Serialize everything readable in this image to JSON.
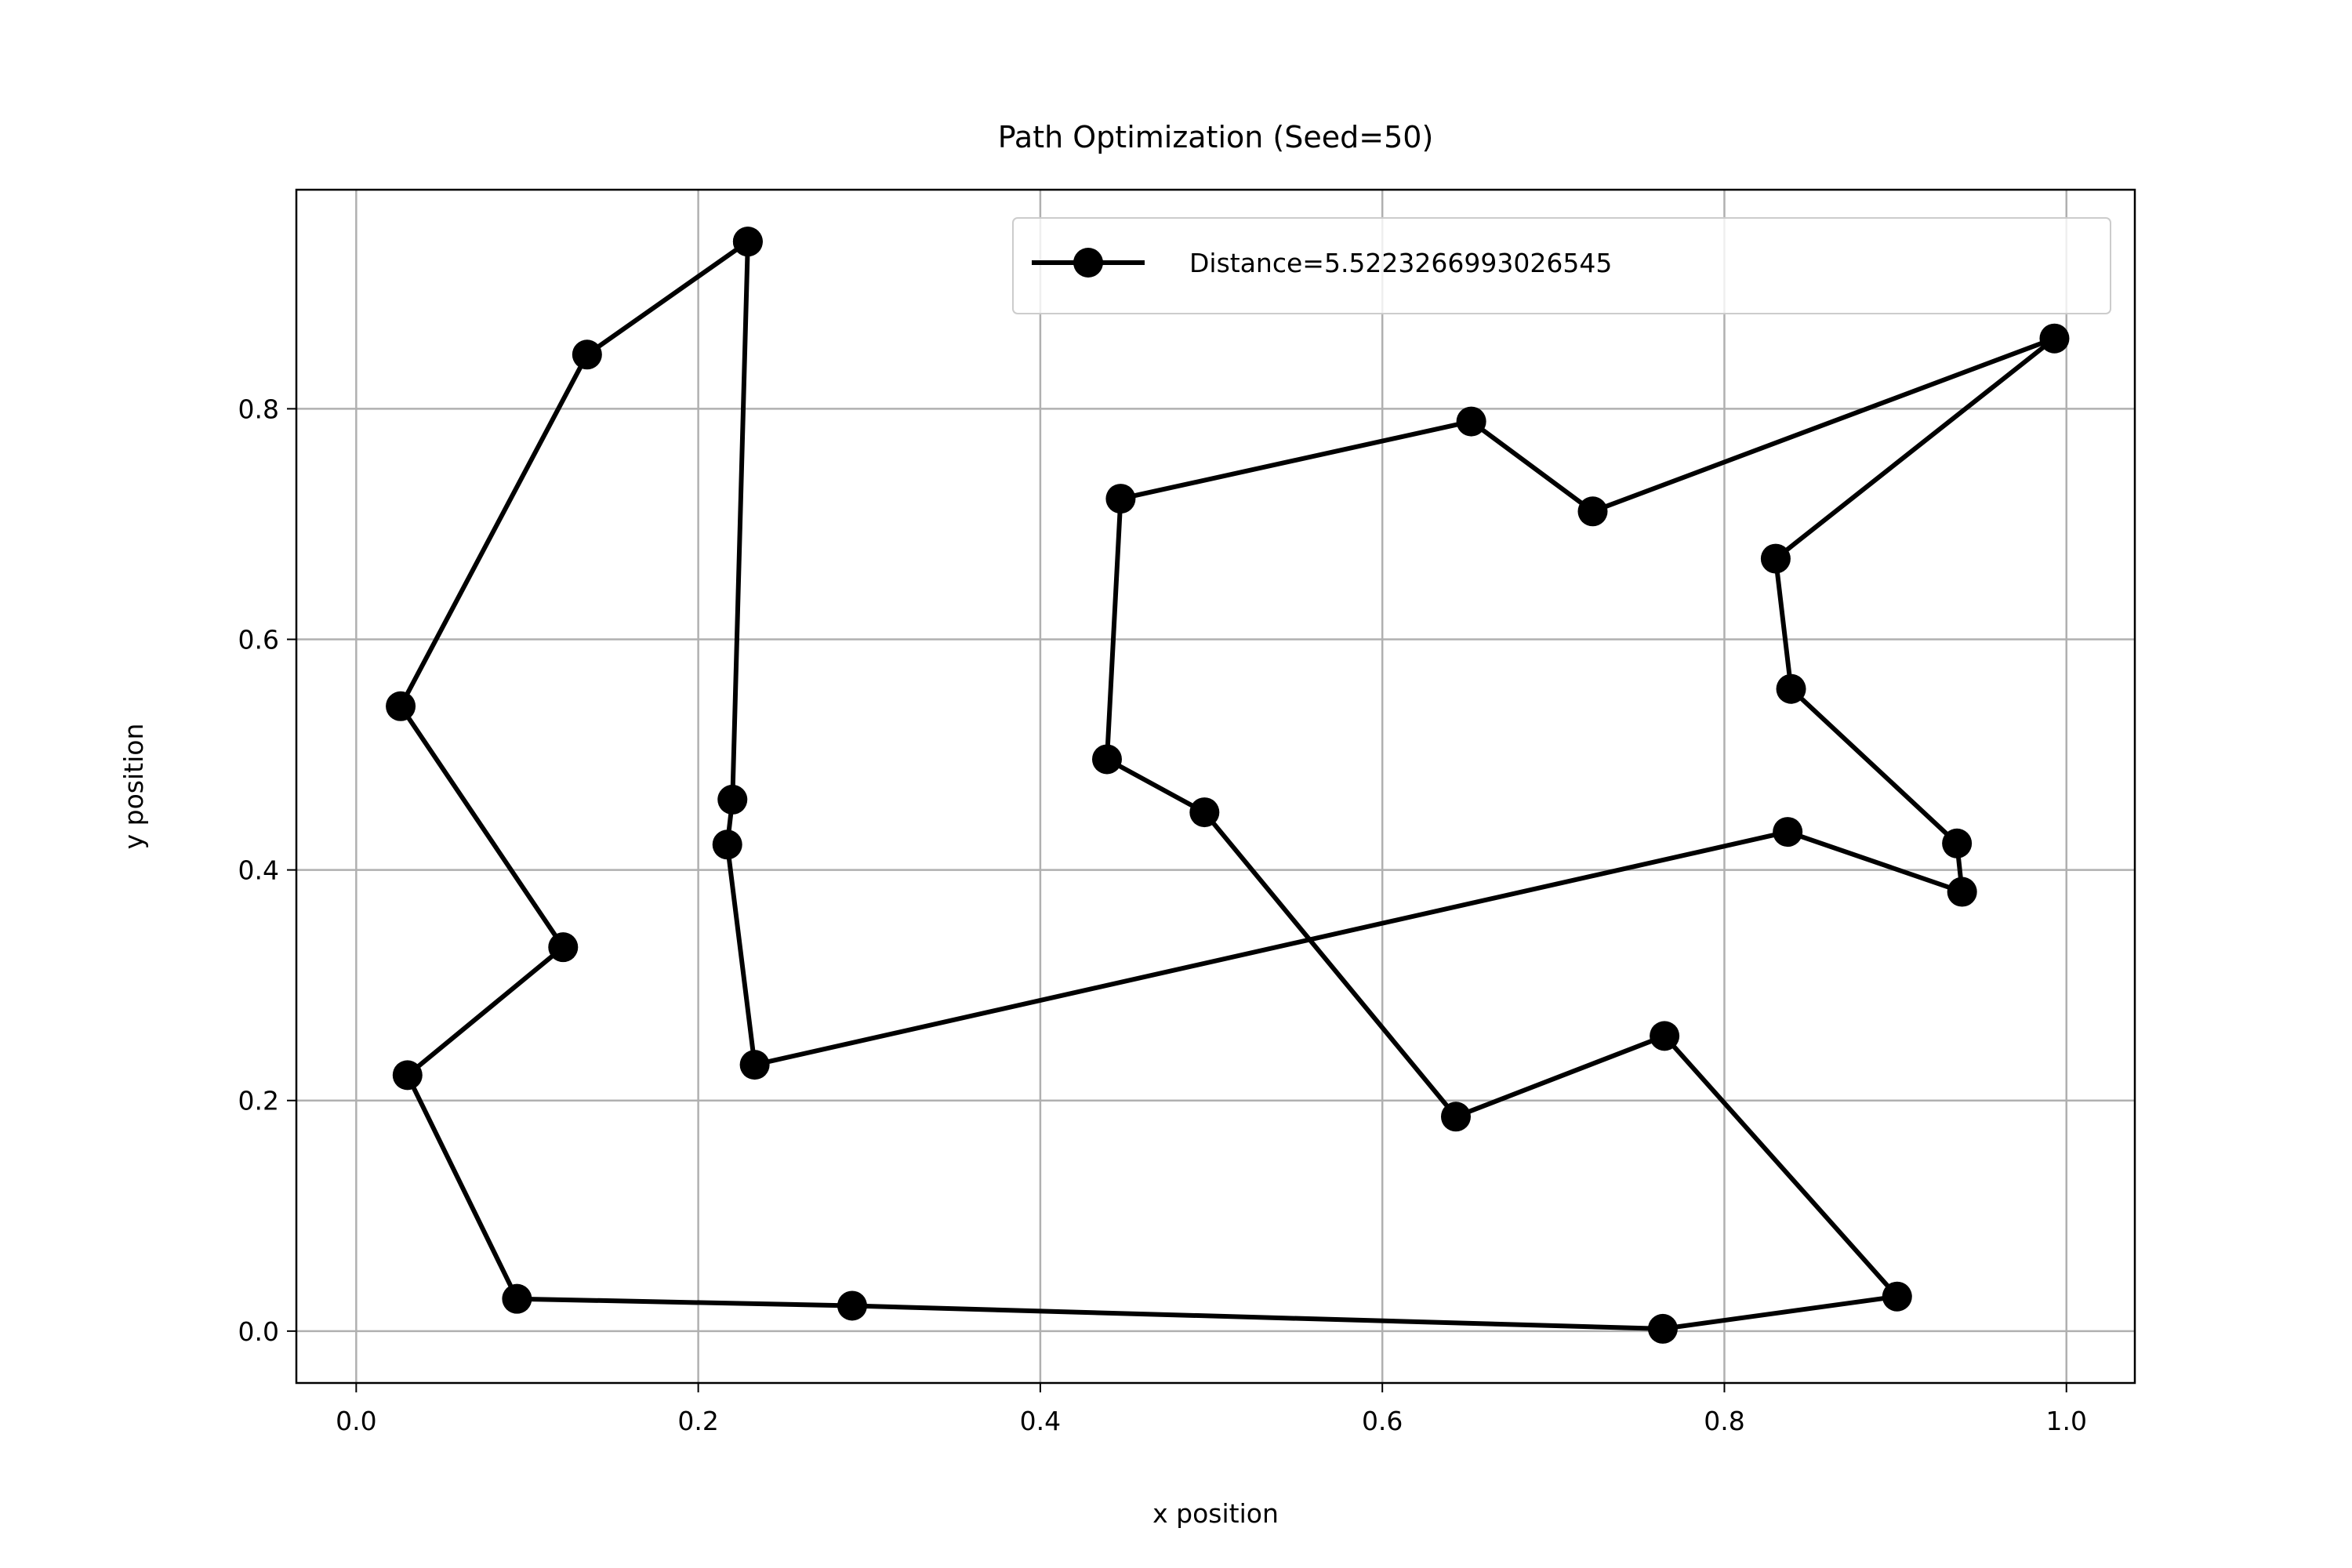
{
  "chart_data": {
    "type": "line",
    "title": "Path Optimization (Seed=50)",
    "xlabel": "x position",
    "ylabel": "y position",
    "xlim": [
      -0.035,
      1.04
    ],
    "ylim": [
      -0.045,
      0.99
    ],
    "xticks": [
      0.0,
      0.2,
      0.4,
      0.6,
      0.8,
      1.0
    ],
    "xtick_labels": [
      "0.0",
      "0.2",
      "0.4",
      "0.6",
      "0.8",
      "1.0"
    ],
    "yticks": [
      0.0,
      0.2,
      0.4,
      0.6,
      0.8
    ],
    "ytick_labels": [
      "0.0",
      "0.2",
      "0.4",
      "0.6",
      "0.8"
    ],
    "grid": true,
    "legend_position": "top-right",
    "color": "#000000",
    "series": [
      {
        "name": "Distance=5.5223266993026545",
        "marker": "circle",
        "points": [
          {
            "x": 0.229,
            "y": 0.945
          },
          {
            "x": 0.135,
            "y": 0.847
          },
          {
            "x": 0.026,
            "y": 0.542
          },
          {
            "x": 0.121,
            "y": 0.333
          },
          {
            "x": 0.03,
            "y": 0.222
          },
          {
            "x": 0.094,
            "y": 0.028
          },
          {
            "x": 0.29,
            "y": 0.022
          },
          {
            "x": 0.764,
            "y": 0.002
          },
          {
            "x": 0.901,
            "y": 0.03
          },
          {
            "x": 0.765,
            "y": 0.256
          },
          {
            "x": 0.643,
            "y": 0.186
          },
          {
            "x": 0.496,
            "y": 0.45
          },
          {
            "x": 0.439,
            "y": 0.496
          },
          {
            "x": 0.447,
            "y": 0.722
          },
          {
            "x": 0.652,
            "y": 0.789
          },
          {
            "x": 0.723,
            "y": 0.711
          },
          {
            "x": 0.993,
            "y": 0.861
          },
          {
            "x": 0.83,
            "y": 0.67
          },
          {
            "x": 0.839,
            "y": 0.557
          },
          {
            "x": 0.936,
            "y": 0.423
          },
          {
            "x": 0.939,
            "y": 0.381
          },
          {
            "x": 0.837,
            "y": 0.433
          },
          {
            "x": 0.233,
            "y": 0.231
          },
          {
            "x": 0.217,
            "y": 0.422
          },
          {
            "x": 0.22,
            "y": 0.461
          },
          {
            "x": 0.229,
            "y": 0.945
          }
        ]
      }
    ]
  }
}
